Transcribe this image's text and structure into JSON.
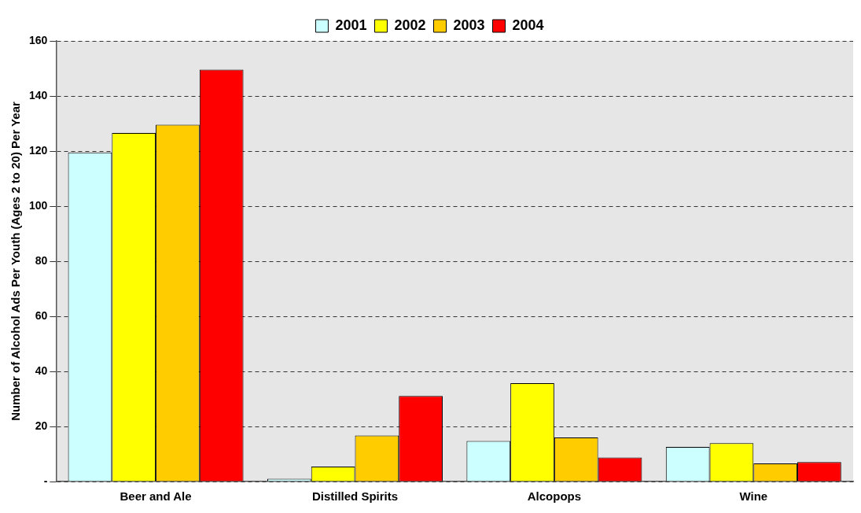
{
  "chart_data": {
    "type": "bar",
    "ylabel": "Number of Alcohol Ads Per Youth (Ages 2 to 20) Per Year",
    "categories": [
      "Beer and Ale",
      "Distilled Spirits",
      "Alcopops",
      "Wine"
    ],
    "series": [
      {
        "name": "2001",
        "color": "#ccffff",
        "values": [
          119.5,
          1.0,
          14.7,
          12.6
        ]
      },
      {
        "name": "2002",
        "color": "#ffff00",
        "values": [
          126.6,
          5.4,
          35.7,
          13.9
        ]
      },
      {
        "name": "2003",
        "color": "#ffcc00",
        "values": [
          129.6,
          16.7,
          16.0,
          6.6
        ]
      },
      {
        "name": "2004",
        "color": "#ff0000",
        "values": [
          149.6,
          31.1,
          8.7,
          7.1
        ]
      }
    ],
    "ylim": [
      0,
      160
    ],
    "yticks": [
      {
        "value": 0,
        "label": "-"
      },
      20,
      40,
      60,
      80,
      100,
      120,
      140,
      160
    ],
    "grid": "y",
    "legend": "top"
  }
}
